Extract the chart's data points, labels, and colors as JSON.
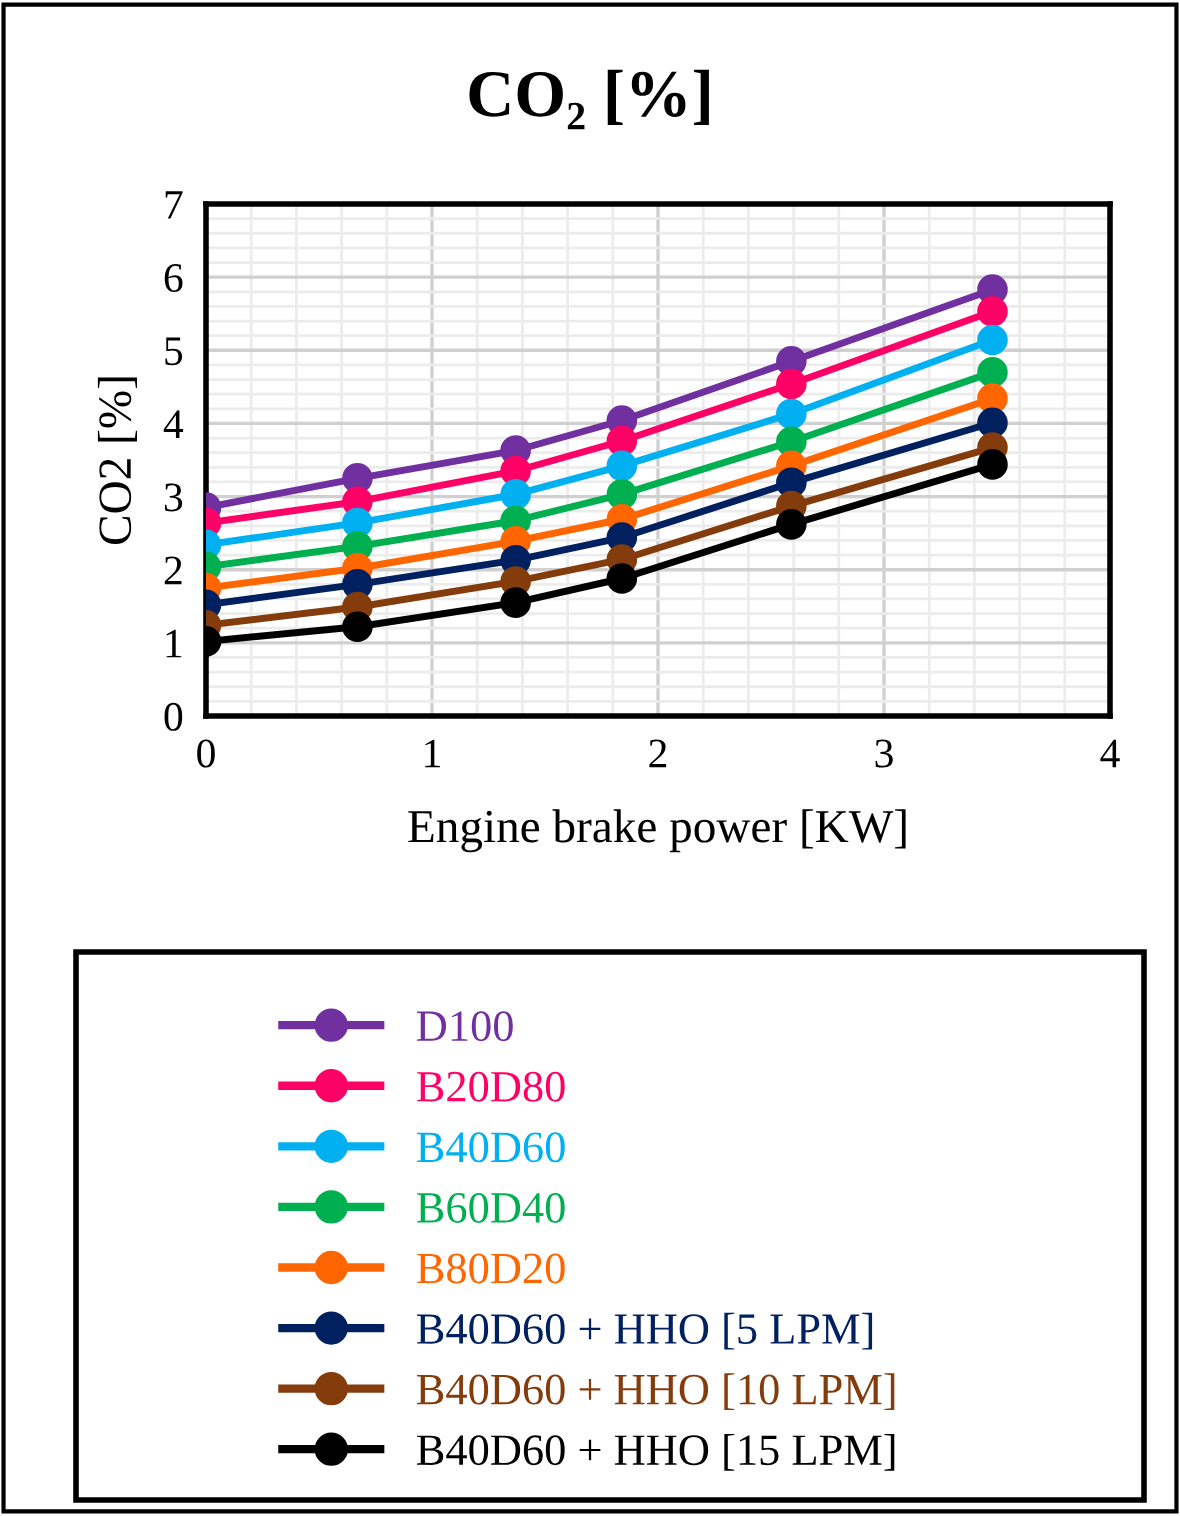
{
  "chart_data": {
    "type": "line",
    "title": "CO₂ [%]",
    "xlabel": "Engine brake power [KW]",
    "ylabel": "CO2 [%]",
    "x": [
      0,
      0.67,
      1.37,
      1.84,
      2.59,
      3.48
    ],
    "xlim": [
      0,
      4
    ],
    "xticks": [
      0,
      1,
      2,
      3,
      4
    ],
    "ylim": [
      0,
      7
    ],
    "yticks": [
      0,
      1,
      2,
      3,
      4,
      5,
      6,
      7
    ],
    "grid": true,
    "legend": "bottom",
    "marker": "circle",
    "line_style": "solid",
    "series": [
      {
        "name": "D100",
        "color": "#7030a0",
        "values": [
          2.85,
          3.25,
          3.63,
          4.04,
          4.85,
          5.83
        ]
      },
      {
        "name": "B20D80",
        "color": "#ff0066",
        "values": [
          2.64,
          2.93,
          3.35,
          3.76,
          4.54,
          5.53
        ]
      },
      {
        "name": "B40D60",
        "color": "#00b0f0",
        "values": [
          2.34,
          2.64,
          3.03,
          3.42,
          4.13,
          5.14
        ]
      },
      {
        "name": "B60D40",
        "color": "#00b050",
        "values": [
          2.04,
          2.32,
          2.67,
          3.03,
          3.75,
          4.7
        ]
      },
      {
        "name": "B80D20",
        "color": "#ff6600",
        "values": [
          1.75,
          2.02,
          2.39,
          2.69,
          3.42,
          4.34
        ]
      },
      {
        "name": "B40D60 + HHO [5 LPM]",
        "color": "#002060",
        "values": [
          1.52,
          1.8,
          2.13,
          2.44,
          3.19,
          4.01
        ]
      },
      {
        "name": "B40D60 + HHO [10 LPM]",
        "color": "#843c0c",
        "values": [
          1.24,
          1.49,
          1.84,
          2.14,
          2.87,
          3.67
        ]
      },
      {
        "name": "B40D60 + HHO [15 LPM]",
        "color": "#000000",
        "values": [
          1.02,
          1.22,
          1.55,
          1.88,
          2.62,
          3.44
        ]
      }
    ]
  }
}
